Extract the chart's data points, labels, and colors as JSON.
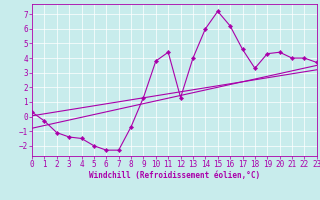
{
  "xlabel": "Windchill (Refroidissement éolien,°C)",
  "xlim": [
    0,
    23
  ],
  "ylim": [
    -2.7,
    7.7
  ],
  "xticks": [
    0,
    1,
    2,
    3,
    4,
    5,
    6,
    7,
    8,
    9,
    10,
    11,
    12,
    13,
    14,
    15,
    16,
    17,
    18,
    19,
    20,
    21,
    22,
    23
  ],
  "yticks": [
    -2,
    -1,
    0,
    1,
    2,
    3,
    4,
    5,
    6,
    7
  ],
  "bg_color": "#c8ecec",
  "line_color": "#aa00aa",
  "grid_color": "#ffffff",
  "line1_x": [
    0,
    1,
    2,
    3,
    4,
    5,
    6,
    7,
    8,
    9,
    10,
    11,
    12,
    13,
    14,
    15,
    16,
    17,
    18,
    19,
    20,
    21,
    22,
    23
  ],
  "line1_y": [
    0.3,
    -0.3,
    -1.1,
    -1.4,
    -1.5,
    -2.0,
    -2.3,
    -2.3,
    -0.7,
    1.3,
    3.8,
    4.4,
    1.3,
    4.0,
    6.0,
    7.2,
    6.2,
    4.6,
    3.3,
    4.3,
    4.4,
    4.0,
    4.0,
    3.7
  ],
  "line2_x": [
    0,
    23
  ],
  "line2_y": [
    -0.8,
    3.5
  ],
  "line3_x": [
    0,
    23
  ],
  "line3_y": [
    0.05,
    3.2
  ],
  "tick_fontsize": 5.5,
  "xlabel_fontsize": 5.5,
  "lw": 0.8,
  "marker_size": 2.2
}
